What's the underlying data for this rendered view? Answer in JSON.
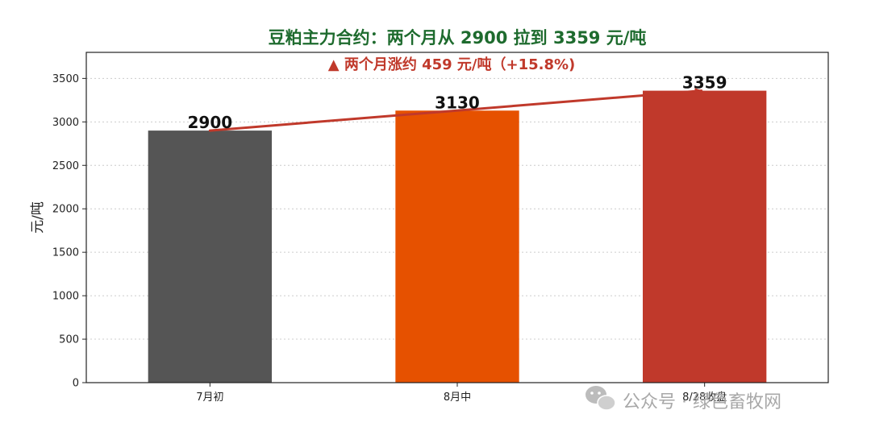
{
  "chart_data": {
    "type": "bar",
    "title": "豆粕主力合约：两个月从 2900 拉到 3359 元/吨",
    "subtitle": "▲ 两个月涨约 459 元/吨（+15.8%)",
    "ylabel": "元/吨",
    "xlabel": "",
    "categories": [
      "7月初",
      "8月中",
      "8/28收盘"
    ],
    "values": [
      2900,
      3130,
      3359
    ],
    "data_labels": [
      "2900",
      "3130",
      "3359"
    ],
    "bar_colors": [
      "#555555",
      "#e65100",
      "#c0392b"
    ],
    "trend_line": {
      "from_value": 2900,
      "to_value": 3359,
      "color": "#c0392b",
      "arrow": true
    },
    "ylim": [
      0,
      3800
    ],
    "yticks": [
      0,
      500,
      1000,
      1500,
      2000,
      2500,
      3000,
      3500
    ],
    "grid": "horizontal-dotted",
    "title_color": "#1e6b2e",
    "subtitle_color": "#c0392b"
  },
  "watermark": {
    "text": "公众号 · 绿色畜牧网",
    "icon": "wechat-icon"
  }
}
